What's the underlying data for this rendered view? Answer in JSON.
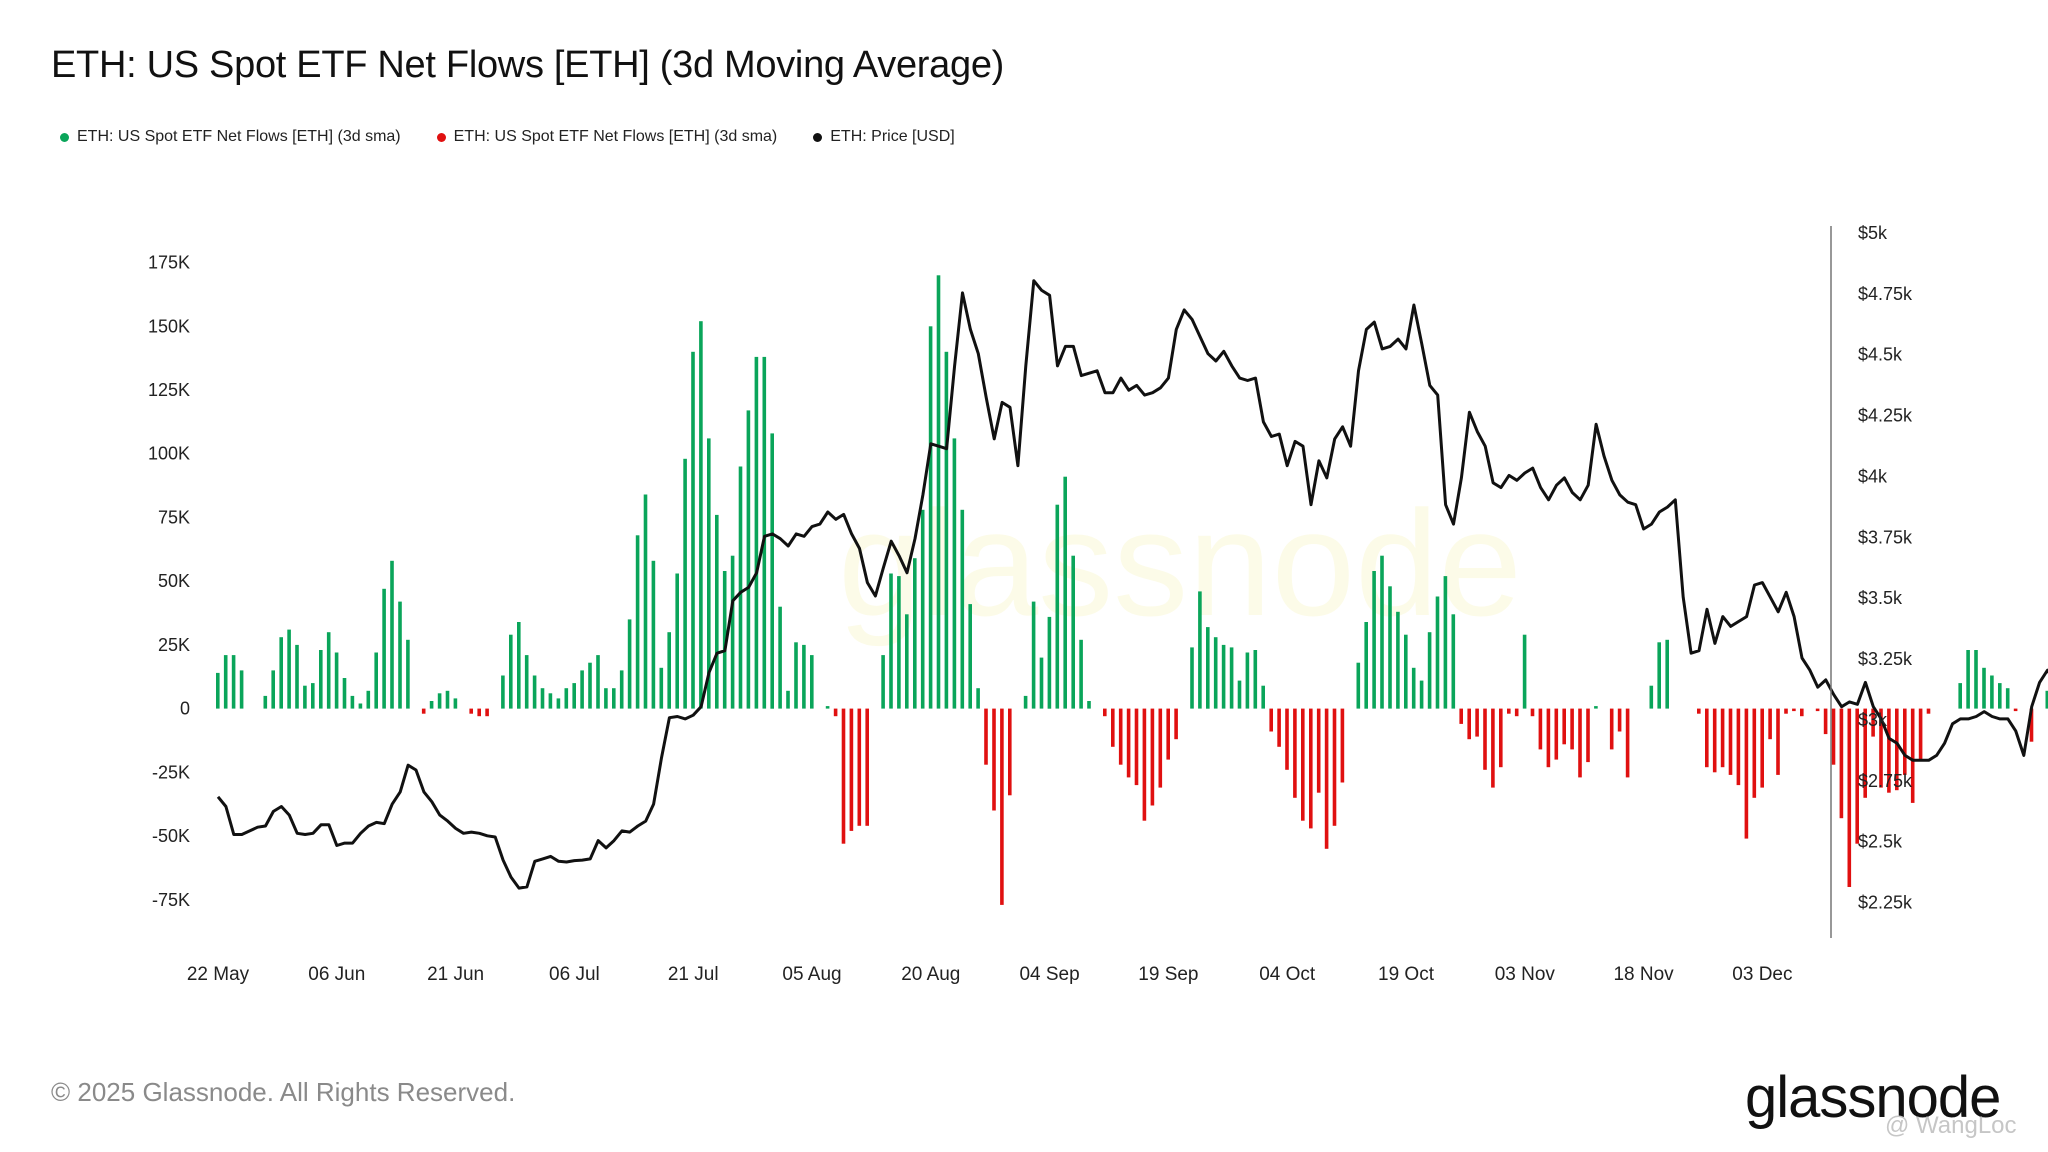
{
  "title": "ETH: US Spot ETF Net Flows [ETH] (3d Moving Average)",
  "legend": [
    {
      "label": "ETH: US Spot ETF Net Flows [ETH] (3d sma)",
      "color": "#0aa55a"
    },
    {
      "label": "ETH: US Spot ETF Net Flows [ETH] (3d sma)",
      "color": "#e01010"
    },
    {
      "label": "ETH: Price [USD]",
      "color": "#111111"
    }
  ],
  "footer": "© 2025 Glassnode. All Rights Reserved.",
  "brand": "glassnode",
  "watermark": "glassnode",
  "credit": "@ WangLoc",
  "chart_data": {
    "type": "bar",
    "x_start": "2025-05-22",
    "xticks": [
      "22 May",
      "06 Jun",
      "21 Jun",
      "06 Jul",
      "21 Jul",
      "05 Aug",
      "20 Aug",
      "04 Sep",
      "19 Sep",
      "04 Oct",
      "19 Oct",
      "03 Nov",
      "18 Nov",
      "03 Dec"
    ],
    "left_axis": {
      "ticks": [
        175000,
        150000,
        125000,
        100000,
        75000,
        50000,
        25000,
        0,
        -25000,
        -50000,
        -75000
      ],
      "tick_labels": [
        "175K",
        "150K",
        "125K",
        "100K",
        "75K",
        "50K",
        "25K",
        "0",
        "-25K",
        "-50K",
        "-75K"
      ],
      "range": [
        -90000,
        187000
      ]
    },
    "right_axis": {
      "ticks": [
        5000,
        4750,
        4500,
        4250,
        4000,
        3750,
        3500,
        3250,
        3000,
        2750,
        2500,
        2250
      ],
      "tick_labels": [
        "$5k",
        "$4.75k",
        "$4.5k",
        "$4.25k",
        "$4k",
        "$3.75k",
        "$3.5k",
        "$3.25k",
        "$3k",
        "$2.75k",
        "$2.5k",
        "$2.25k"
      ],
      "range": [
        2100,
        5000
      ]
    },
    "grid": false,
    "legend_position": "top-left",
    "series": [
      {
        "name": "ETH: US Spot ETF Net Flows [ETH] (3d sma)",
        "type": "bar",
        "axis": "left",
        "color_positive": "#0aa55a",
        "color_negative": "#e01010",
        "values": [
          14000,
          21000,
          21000,
          15000,
          0,
          0,
          5000,
          15000,
          28000,
          31000,
          25000,
          9000,
          10000,
          23000,
          30000,
          22000,
          12000,
          5000,
          2000,
          7000,
          22000,
          47000,
          58000,
          42000,
          27000,
          0,
          -2000,
          3000,
          6000,
          7000,
          4000,
          0,
          -2000,
          -3000,
          -3000,
          0,
          13000,
          29000,
          34000,
          21000,
          13000,
          8000,
          6000,
          4000,
          8000,
          10000,
          15000,
          18000,
          21000,
          8000,
          8000,
          15000,
          35000,
          68000,
          84000,
          58000,
          16000,
          30000,
          53000,
          98000,
          140000,
          152000,
          106000,
          76000,
          54000,
          60000,
          95000,
          117000,
          138000,
          138000,
          108000,
          40000,
          7000,
          26000,
          25000,
          21000,
          0,
          1000,
          -3000,
          -53000,
          -48000,
          -46000,
          -46000,
          0,
          21000,
          53000,
          52000,
          37000,
          59000,
          78000,
          150000,
          170000,
          140000,
          106000,
          78000,
          41000,
          8000,
          -22000,
          -40000,
          -77000,
          -34000,
          0,
          5000,
          42000,
          20000,
          36000,
          80000,
          91000,
          60000,
          27000,
          3000,
          0,
          -3000,
          -15000,
          -22000,
          -27000,
          -30000,
          -44000,
          -38000,
          -31000,
          -20000,
          -12000,
          0,
          24000,
          46000,
          32000,
          28000,
          25000,
          24000,
          11000,
          22000,
          23000,
          9000,
          -9000,
          -15000,
          -24000,
          -35000,
          -44000,
          -47000,
          -33000,
          -55000,
          -46000,
          -29000,
          0,
          18000,
          34000,
          54000,
          60000,
          48000,
          38000,
          29000,
          16000,
          11000,
          30000,
          44000,
          52000,
          37000,
          -6000,
          -12000,
          -11000,
          -24000,
          -31000,
          -23000,
          -2000,
          -3000,
          29000,
          -3000,
          -16000,
          -23000,
          -20000,
          -14000,
          -16000,
          -27000,
          -21000,
          1000,
          0,
          -16000,
          -9000,
          -27000,
          0,
          0,
          9000,
          26000,
          27000,
          0,
          0,
          0,
          -2000,
          -23000,
          -25000,
          -23000,
          -26000,
          -30000,
          -51000,
          -35000,
          -31000,
          -12000,
          -26000,
          -2000,
          -1000,
          -3000,
          0,
          -1000,
          -10000,
          -22000,
          -43000,
          -70000,
          -53000,
          -35000,
          -11000,
          -31000,
          -33000,
          -32000,
          -26000,
          -37000,
          -20000,
          -2000,
          0,
          0,
          0,
          10000,
          23000,
          23000,
          16000,
          13000,
          10000,
          8000,
          -1000,
          0,
          -13000,
          0,
          7000,
          5000,
          -7000,
          -13000,
          -3000,
          3000,
          14000,
          26000
        ]
      },
      {
        "name": "ETH: Price [USD]",
        "type": "line",
        "axis": "right",
        "color": "#111111",
        "values": [
          2680,
          2640,
          2525,
          2525,
          2540,
          2555,
          2560,
          2620,
          2640,
          2605,
          2530,
          2525,
          2530,
          2565,
          2565,
          2480,
          2490,
          2490,
          2530,
          2560,
          2575,
          2570,
          2650,
          2700,
          2810,
          2790,
          2700,
          2660,
          2605,
          2580,
          2550,
          2530,
          2535,
          2530,
          2520,
          2515,
          2420,
          2350,
          2305,
          2310,
          2415,
          2425,
          2435,
          2415,
          2412,
          2418,
          2420,
          2425,
          2500,
          2470,
          2500,
          2540,
          2535,
          2560,
          2580,
          2650,
          2840,
          3005,
          3010,
          3000,
          3015,
          3050,
          3190,
          3270,
          3280,
          3485,
          3520,
          3540,
          3600,
          3750,
          3760,
          3740,
          3710,
          3760,
          3750,
          3790,
          3800,
          3850,
          3820,
          3840,
          3760,
          3700,
          3560,
          3505,
          3620,
          3730,
          3670,
          3600,
          3740,
          3920,
          4130,
          4120,
          4110,
          4450,
          4750,
          4600,
          4500,
          4320,
          4150,
          4300,
          4280,
          4040,
          4450,
          4800,
          4760,
          4740,
          4450,
          4530,
          4530,
          4410,
          4420,
          4430,
          4340,
          4340,
          4400,
          4350,
          4370,
          4330,
          4340,
          4360,
          4400,
          4600,
          4680,
          4640,
          4570,
          4500,
          4470,
          4510,
          4450,
          4400,
          4390,
          4400,
          4220,
          4160,
          4170,
          4040,
          4140,
          4120,
          3880,
          4060,
          3990,
          4150,
          4200,
          4120,
          4430,
          4600,
          4630,
          4520,
          4530,
          4560,
          4520,
          4700,
          4540,
          4370,
          4330,
          3880,
          3800,
          3990,
          4260,
          4180,
          4120,
          3970,
          3950,
          4000,
          3980,
          4010,
          4030,
          3950,
          3900,
          3960,
          3990,
          3930,
          3900,
          3960,
          4210,
          4080,
          3980,
          3920,
          3890,
          3880,
          3780,
          3800,
          3850,
          3870,
          3900,
          3500,
          3270,
          3280,
          3450,
          3310,
          3420,
          3380,
          3400,
          3420,
          3550,
          3560,
          3500,
          3440,
          3520,
          3420,
          3250,
          3200,
          3130,
          3160,
          3100,
          3050,
          3070,
          3060,
          3150,
          3050,
          3000,
          2920,
          2900,
          2850,
          2830,
          2830,
          2830,
          2850,
          2900,
          2980,
          3000,
          3000,
          3010,
          3030,
          3010,
          3000,
          3000,
          2950,
          2850,
          3050,
          3150,
          3200,
          3150,
          3080,
          3040,
          3040,
          3060,
          3060,
          3100,
          3200,
          3320,
          3320
        ]
      }
    ]
  }
}
